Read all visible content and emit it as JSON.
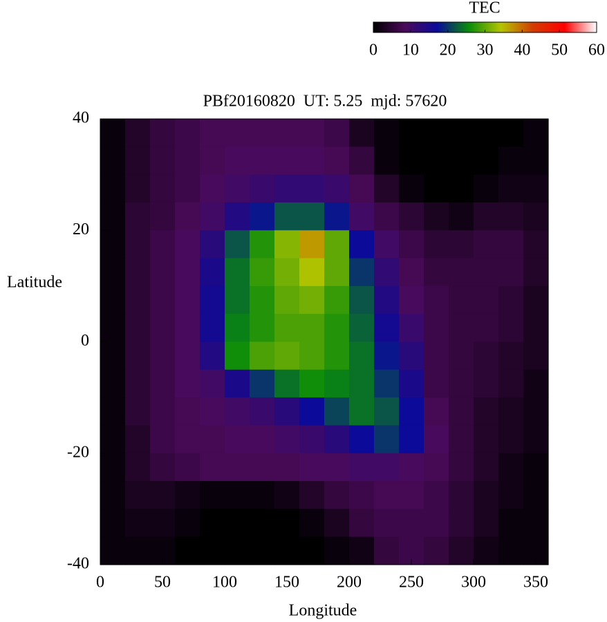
{
  "chart_data": {
    "type": "heatmap",
    "title": "PBf20160820  UT: 5.25  mjd: 57620",
    "x_label": "Longitude",
    "y_label": "Latitude",
    "xlim": [
      0,
      360
    ],
    "ylim": [
      -40,
      40
    ],
    "xticks": [
      0,
      50,
      100,
      150,
      200,
      250,
      300,
      350
    ],
    "yticks": [
      -40,
      -20,
      0,
      20,
      40
    ],
    "x": [
      10,
      30,
      50,
      70,
      90,
      110,
      130,
      150,
      170,
      190,
      210,
      230,
      250,
      270,
      290,
      310,
      330,
      350
    ],
    "y": [
      37.5,
      32.5,
      27.5,
      22.5,
      17.5,
      12.5,
      7.5,
      2.5,
      -2.5,
      -7.5,
      -12.5,
      -17.5,
      -22.5,
      -27.5,
      -32.5,
      -37.5
    ],
    "values": [
      [
        1,
        4,
        6,
        7,
        8,
        8,
        8,
        8,
        8,
        7,
        3,
        1,
        0,
        0,
        0,
        0,
        0,
        1
      ],
      [
        1,
        4,
        6,
        7,
        8,
        9,
        9,
        9,
        9,
        8,
        6,
        1,
        0,
        0,
        0,
        0,
        1,
        1
      ],
      [
        1,
        4,
        6,
        7,
        9,
        10,
        11,
        12,
        12,
        11,
        8,
        4,
        1,
        0,
        0,
        1,
        2,
        2
      ],
      [
        1,
        5,
        6,
        8,
        10,
        14,
        18,
        22,
        22,
        18,
        10,
        7,
        5,
        3,
        2,
        4,
        4,
        3
      ],
      [
        1,
        5,
        7,
        9,
        13,
        22,
        27,
        32,
        37,
        30,
        17,
        10,
        7,
        5,
        5,
        6,
        6,
        4
      ],
      [
        1,
        5,
        7,
        9,
        15,
        24,
        28,
        31,
        34,
        30,
        20,
        12,
        8,
        6,
        6,
        6,
        6,
        4
      ],
      [
        1,
        5,
        7,
        9,
        16,
        24,
        27,
        30,
        31,
        28,
        22,
        14,
        9,
        7,
        6,
        6,
        5,
        3
      ],
      [
        1,
        5,
        7,
        9,
        16,
        25,
        27,
        29,
        29,
        27,
        23,
        16,
        11,
        7,
        6,
        6,
        5,
        3
      ],
      [
        1,
        5,
        7,
        9,
        14,
        26,
        29,
        30,
        29,
        27,
        24,
        18,
        13,
        7,
        6,
        5,
        4,
        3
      ],
      [
        1,
        5,
        7,
        9,
        10,
        15,
        20,
        24,
        26,
        25,
        24,
        20,
        15,
        7,
        6,
        5,
        4,
        2
      ],
      [
        1,
        5,
        7,
        8,
        9,
        10,
        11,
        13,
        17,
        21,
        24,
        22,
        17,
        8,
        6,
        4,
        3,
        2
      ],
      [
        1,
        4,
        7,
        8,
        8,
        9,
        9,
        10,
        11,
        13,
        17,
        20,
        17,
        9,
        6,
        4,
        3,
        2
      ],
      [
        1,
        4,
        6,
        7,
        8,
        8,
        8,
        8,
        9,
        9,
        10,
        10,
        9,
        8,
        6,
        4,
        2,
        1
      ],
      [
        1,
        3,
        3,
        2,
        1,
        1,
        1,
        2,
        4,
        6,
        7,
        8,
        8,
        7,
        5,
        3,
        2,
        1
      ],
      [
        1,
        2,
        2,
        1,
        0,
        0,
        0,
        0,
        1,
        3,
        6,
        7,
        7,
        7,
        5,
        3,
        1,
        1
      ],
      [
        1,
        1,
        1,
        0,
        0,
        0,
        0,
        0,
        0,
        1,
        2,
        6,
        7,
        6,
        4,
        2,
        1,
        1
      ]
    ],
    "colorbar_label": "TEC",
    "zlim": [
      0,
      60
    ],
    "zticks": [
      0,
      10,
      20,
      30,
      40,
      50,
      60
    ],
    "colormap": [
      "#000000",
      "#4b0a5a",
      "#0a0a9a",
      "#0a8c0a",
      "#b4c400",
      "#d23c00",
      "#ff0000",
      "#ffffff"
    ]
  }
}
